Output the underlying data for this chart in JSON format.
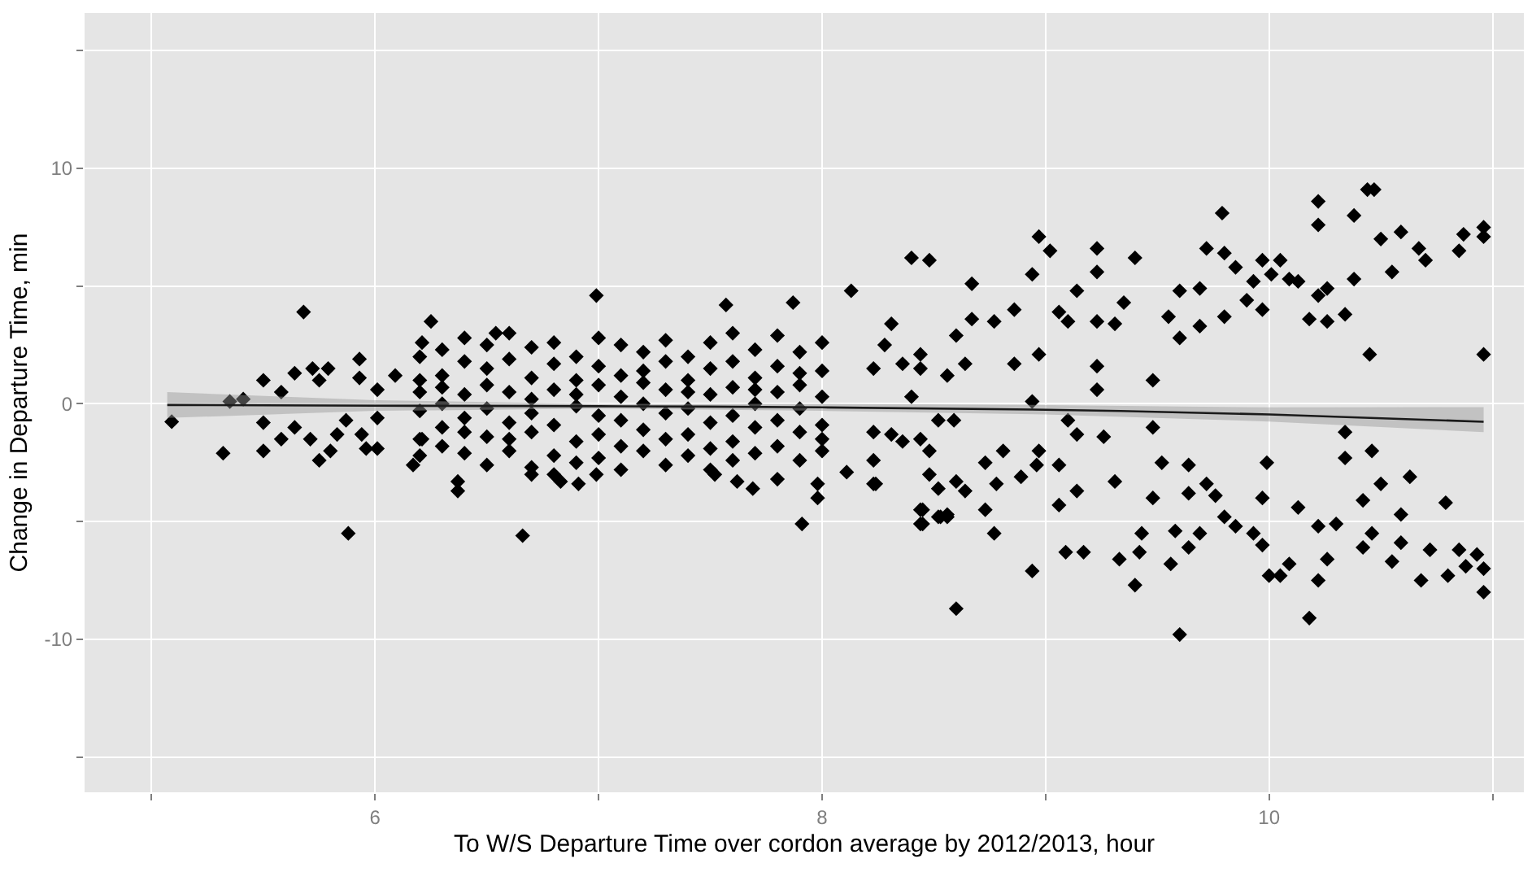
{
  "chart_data": {
    "type": "scatter",
    "xlabel": "To W/S Departure Time over cordon average by 2012/2013, hour",
    "ylabel": "Change in Departure Time, min",
    "xlim": [
      4.7,
      11.14
    ],
    "ylim": [
      -16.5,
      16.6
    ],
    "xticks": [
      {
        "value": 5,
        "label": null
      },
      6,
      {
        "value": 7,
        "label": null
      },
      8,
      {
        "value": 9,
        "label": null
      },
      10,
      {
        "value": 11,
        "label": null
      }
    ],
    "yticks": [
      {
        "value": -15,
        "label": null
      },
      -10,
      {
        "value": -5,
        "label": null
      },
      0,
      {
        "value": 5,
        "label": null
      },
      10,
      {
        "value": 15,
        "label": null
      }
    ],
    "grid": true,
    "legend": false,
    "series": [
      {
        "color": "#000000",
        "marker": "diamond",
        "x": [
          5.09,
          5.32,
          5.35,
          5.41,
          5.5,
          5.5,
          5.5,
          5.58,
          5.58,
          5.64,
          5.64,
          5.68,
          5.71,
          5.72,
          5.75,
          5.75,
          5.79,
          5.8,
          5.83,
          5.87,
          5.88,
          5.93,
          5.93,
          5.94,
          5.96,
          6.01,
          6.01,
          6.01,
          6.09,
          6.17,
          6.21,
          6.25,
          6.21,
          6.37,
          6.37,
          6.54,
          6.66,
          6.7,
          6.83,
          6.99,
          7.57,
          7.87,
          8.13,
          8.4,
          8.48,
          7.91,
          7.69,
          7.62,
          7.52,
          6.91,
          6.99,
          7.98,
          7.98,
          8.11,
          8.24,
          8.45,
          8.45,
          8.53,
          8.56,
          6.2,
          6.2,
          6.2,
          6.2,
          6.2,
          6.2,
          6.3,
          6.3,
          6.3,
          6.3,
          6.3,
          6.3,
          6.4,
          6.4,
          6.4,
          6.4,
          6.4,
          6.4,
          6.5,
          6.5,
          6.5,
          6.5,
          6.5,
          6.5,
          6.6,
          6.6,
          6.6,
          6.6,
          6.6,
          6.6,
          6.7,
          6.7,
          6.7,
          6.7,
          6.7,
          6.7,
          6.8,
          6.8,
          6.8,
          6.8,
          6.8,
          6.8,
          6.9,
          6.9,
          6.9,
          6.9,
          6.9,
          6.9,
          7.0,
          7.0,
          7.0,
          7.0,
          7.0,
          7.0,
          7.1,
          7.1,
          7.1,
          7.1,
          7.1,
          7.1,
          7.2,
          7.2,
          7.2,
          7.2,
          7.2,
          7.2,
          7.3,
          7.3,
          7.3,
          7.3,
          7.3,
          7.3,
          7.4,
          7.4,
          7.4,
          7.4,
          7.4,
          7.4,
          7.5,
          7.5,
          7.5,
          7.5,
          7.5,
          7.5,
          7.6,
          7.6,
          7.6,
          7.6,
          7.6,
          7.6,
          7.7,
          7.7,
          7.7,
          7.7,
          7.7,
          7.7,
          7.8,
          7.8,
          7.8,
          7.8,
          7.8,
          7.8,
          7.9,
          7.9,
          7.9,
          7.9,
          7.9,
          7.9,
          8.0,
          8.0,
          8.0,
          8.0,
          8.0,
          8.0,
          8.67,
          8.67,
          8.6,
          8.77,
          8.86,
          8.86,
          8.94,
          8.97,
          9.02,
          8.97,
          9.06,
          9.1,
          9.14,
          9.23,
          9.23,
          9.23,
          9.23,
          9.23,
          9.31,
          9.35,
          9.4,
          9.48,
          9.55,
          9.6,
          9.6,
          9.69,
          9.69,
          9.72,
          9.79,
          9.8,
          9.8,
          9.85,
          9.9,
          9.93,
          9.97,
          9.97,
          10.01,
          10.05,
          10.09,
          10.13,
          10.18,
          10.22,
          10.22,
          10.22,
          10.26,
          10.26,
          10.34,
          10.38,
          10.38,
          10.44,
          10.47,
          10.45,
          10.5,
          10.55,
          10.59,
          10.67,
          10.7,
          10.85,
          10.87,
          10.96,
          10.96,
          10.96,
          8.6,
          8.94,
          9.09,
          9.17,
          9.06,
          9.14,
          9.06,
          9.1,
          9.14,
          9.26,
          9.31,
          9.33,
          9.4,
          9.42,
          9.43,
          9.48,
          9.48,
          9.52,
          9.56,
          9.6,
          9.58,
          9.64,
          9.64,
          9.64,
          9.69,
          9.72,
          9.76,
          9.8,
          9.85,
          9.93,
          9.97,
          9.97,
          9.99,
          10.0,
          10.05,
          10.09,
          10.13,
          10.18,
          10.22,
          10.22,
          10.26,
          10.3,
          10.34,
          10.34,
          10.42,
          10.42,
          10.46,
          10.46,
          10.5,
          10.55,
          10.59,
          10.59,
          10.63,
          10.68,
          10.72,
          10.79,
          10.8,
          10.85,
          10.88,
          10.93,
          10.96,
          10.96,
          8.31,
          8.28,
          8.23,
          8.36,
          8.44,
          8.44,
          8.56,
          8.64,
          8.4,
          8.23,
          8.23,
          8.23,
          8.31,
          8.36,
          8.44,
          8.48,
          8.48,
          8.52,
          8.44,
          8.44,
          8.52,
          8.56,
          8.6,
          8.64,
          8.52,
          8.59,
          8.73,
          8.73,
          8.77,
          8.78,
          8.81,
          8.89,
          8.96,
          8.97,
          8.94
        ],
        "values": [
          -0.76,
          -2.1,
          0.1,
          0.2,
          1.0,
          -0.8,
          -2.0,
          0.5,
          -1.5,
          1.3,
          -1.0,
          3.9,
          -1.5,
          1.5,
          1.0,
          -2.4,
          1.5,
          -2.0,
          -1.3,
          -0.7,
          -5.5,
          1.9,
          1.1,
          -1.3,
          -1.9,
          0.6,
          -0.6,
          -1.9,
          1.2,
          -2.6,
          2.6,
          3.5,
          -1.5,
          -3.3,
          -3.7,
          3.0,
          -5.6,
          -3.0,
          -3.3,
          4.6,
          4.2,
          4.3,
          4.8,
          6.2,
          6.1,
          -5.1,
          -3.6,
          -3.3,
          -3.0,
          -3.4,
          -3.0,
          -4.0,
          -3.4,
          -2.9,
          -3.4,
          -4.5,
          -5.1,
          -4.8,
          -4.7,
          1.0,
          -0.3,
          -1.5,
          0.5,
          2.0,
          -2.2,
          2.3,
          1.2,
          0.0,
          -1.0,
          -1.8,
          0.7,
          1.8,
          0.4,
          -0.6,
          -2.1,
          2.8,
          -1.2,
          2.5,
          1.5,
          -0.2,
          -1.4,
          -2.6,
          0.8,
          3.0,
          1.9,
          0.5,
          -0.8,
          -2.0,
          -1.5,
          2.4,
          1.1,
          -0.4,
          -1.2,
          -2.7,
          0.2,
          2.6,
          1.7,
          0.6,
          -0.9,
          -2.2,
          -3.0,
          2.0,
          1.0,
          -0.1,
          -1.6,
          -2.5,
          0.4,
          2.8,
          1.6,
          0.8,
          -0.5,
          -1.3,
          -2.3,
          2.5,
          1.2,
          0.3,
          -0.7,
          -1.8,
          -2.8,
          2.2,
          1.4,
          0.0,
          -1.1,
          -2.0,
          0.9,
          2.7,
          1.8,
          0.6,
          -0.4,
          -1.5,
          -2.6,
          2.0,
          1.0,
          -0.2,
          -1.3,
          -2.2,
          0.5,
          2.6,
          1.5,
          0.4,
          -0.8,
          -1.9,
          -2.8,
          3.0,
          1.8,
          0.7,
          -0.5,
          -1.6,
          -2.4,
          2.3,
          1.1,
          0.0,
          -1.0,
          -2.1,
          0.6,
          2.9,
          1.6,
          0.5,
          -0.7,
          -1.8,
          -3.2,
          2.2,
          1.3,
          -0.2,
          -1.2,
          -2.4,
          0.8,
          2.6,
          1.4,
          0.3,
          -0.9,
          -1.5,
          -2.0,
          5.1,
          3.6,
          2.9,
          3.5,
          4.0,
          1.7,
          5.5,
          7.1,
          6.5,
          2.1,
          3.9,
          3.5,
          4.8,
          6.6,
          5.6,
          3.5,
          1.6,
          0.6,
          3.4,
          4.3,
          6.2,
          1.0,
          3.7,
          4.8,
          2.8,
          4.9,
          3.3,
          6.6,
          8.1,
          6.4,
          3.7,
          5.8,
          4.4,
          5.2,
          6.1,
          4.0,
          5.5,
          6.1,
          5.3,
          5.2,
          3.6,
          8.6,
          7.6,
          4.6,
          4.9,
          3.5,
          3.8,
          8.0,
          5.3,
          9.1,
          9.1,
          2.1,
          7.0,
          5.6,
          7.3,
          6.6,
          6.1,
          6.5,
          7.2,
          7.5,
          7.1,
          2.1,
          -8.7,
          -7.1,
          -6.3,
          -6.3,
          -4.3,
          -3.7,
          -2.6,
          -0.7,
          -1.3,
          -1.4,
          -3.3,
          -6.6,
          -7.7,
          -6.3,
          -5.5,
          -1.0,
          -4.0,
          -2.5,
          -6.8,
          -9.8,
          -5.4,
          -2.6,
          -3.8,
          -6.1,
          -5.5,
          -3.4,
          -3.9,
          -4.8,
          -5.2,
          -5.5,
          -6.0,
          -4.0,
          -2.5,
          -7.3,
          -7.3,
          -6.8,
          -4.4,
          -9.1,
          -5.2,
          -7.5,
          -6.6,
          -5.1,
          -1.2,
          -2.3,
          -4.1,
          -6.1,
          -2.0,
          -5.5,
          -3.4,
          -6.7,
          -4.7,
          -5.9,
          -3.1,
          -7.5,
          -6.2,
          -4.2,
          -7.3,
          -6.2,
          -6.9,
          -6.4,
          -7.0,
          -8.0,
          3.4,
          2.5,
          1.5,
          1.7,
          2.1,
          1.5,
          1.2,
          1.7,
          0.3,
          -1.2,
          -2.4,
          -3.4,
          -1.3,
          -1.6,
          -1.5,
          -2.0,
          -3.0,
          -3.6,
          -4.5,
          -5.1,
          -4.8,
          -4.8,
          -3.3,
          -3.7,
          -0.7,
          -0.7,
          -2.5,
          -4.5,
          -5.5,
          -3.4,
          -2.0,
          -3.1,
          -2.6,
          -2.0,
          0.1
        ]
      },
      {
        "type": "line",
        "color": "#1a1a1a",
        "marker": "none",
        "line_style": "solid",
        "x": [
          5.07,
          6.0,
          7.0,
          8.0,
          9.0,
          10.0,
          10.96
        ],
        "values": [
          -0.05,
          -0.08,
          -0.1,
          -0.15,
          -0.25,
          -0.45,
          -0.76
        ],
        "lower": [
          -0.6,
          -0.3,
          -0.2,
          -0.3,
          -0.45,
          -0.75,
          -1.2
        ],
        "upper": [
          0.5,
          0.15,
          0.0,
          0.0,
          -0.05,
          -0.15,
          -0.14
        ]
      }
    ]
  }
}
